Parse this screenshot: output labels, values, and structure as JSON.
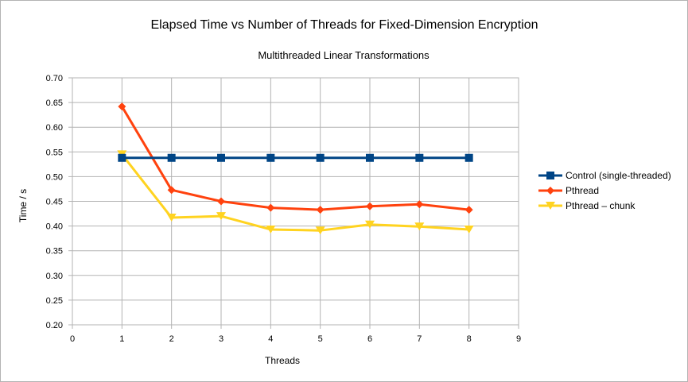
{
  "chart_data": {
    "type": "line",
    "title": "Elapsed Time vs Number of Threads for Fixed-Dimension Encryption",
    "subtitle": "Multithreaded Linear Transformations",
    "xlabel": "Threads",
    "ylabel": "Time / s",
    "xlim": [
      0,
      9
    ],
    "ylim": [
      0.2,
      0.7
    ],
    "x_ticks": [
      "0",
      "1",
      "2",
      "3",
      "4",
      "5",
      "6",
      "7",
      "8",
      "9"
    ],
    "y_ticks": [
      "0.20",
      "0.25",
      "0.30",
      "0.35",
      "0.40",
      "0.45",
      "0.50",
      "0.55",
      "0.60",
      "0.65",
      "0.70"
    ],
    "grid": "vertical and horizontal major",
    "legend_position": "right",
    "x": [
      1,
      2,
      3,
      4,
      5,
      6,
      7,
      8
    ],
    "series": [
      {
        "name": "Control (single-threaded)",
        "color": "#004586",
        "marker": "square",
        "values": [
          0.538,
          0.538,
          0.538,
          0.538,
          0.538,
          0.538,
          0.538,
          0.538
        ]
      },
      {
        "name": "Pthread",
        "color": "#ff420e",
        "marker": "diamond",
        "values": [
          0.642,
          0.473,
          0.45,
          0.437,
          0.433,
          0.44,
          0.444,
          0.433
        ]
      },
      {
        "name": "Pthread – chunk",
        "color": "#ffd320",
        "marker": "triangle-down",
        "values": [
          0.545,
          0.417,
          0.42,
          0.393,
          0.391,
          0.403,
          0.399,
          0.393
        ]
      }
    ]
  }
}
